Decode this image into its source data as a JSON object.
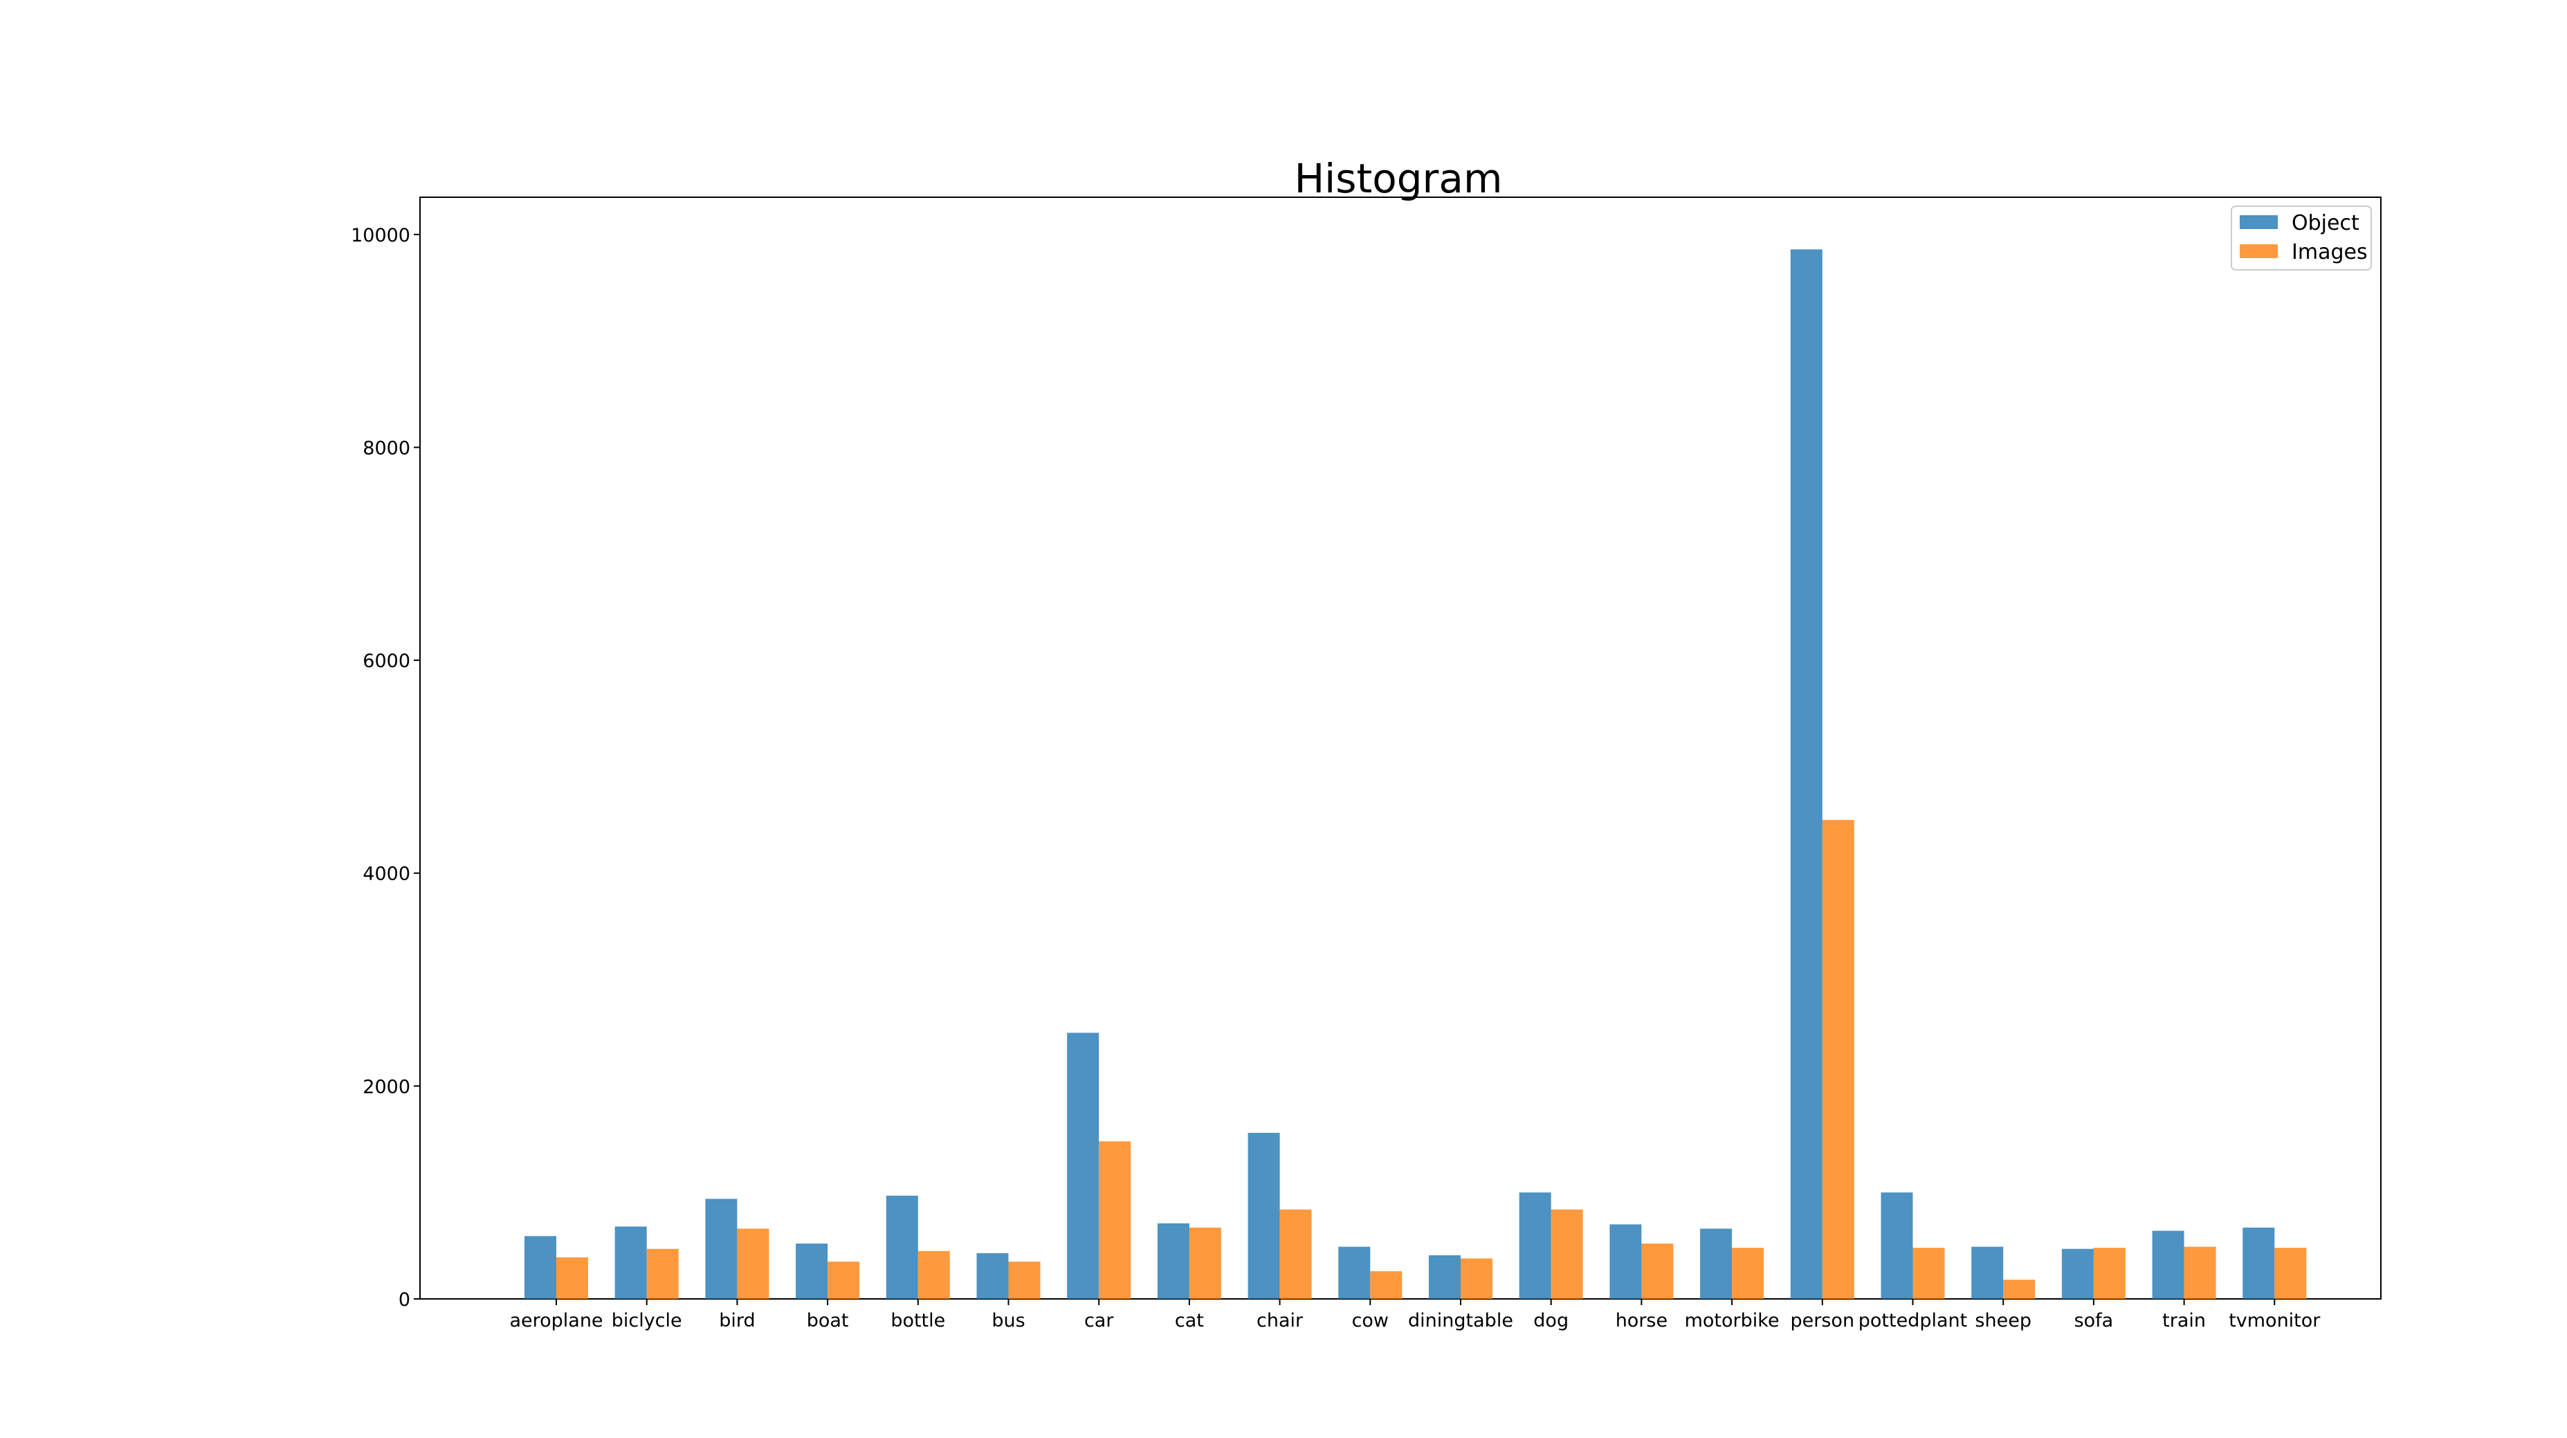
{
  "chart_data": {
    "type": "bar",
    "title": "Histogram",
    "xlabel": "",
    "ylabel": "",
    "categories": [
      "aeroplane",
      "biclycle",
      "bird",
      "boat",
      "bottle",
      "bus",
      "car",
      "cat",
      "chair",
      "cow",
      "diningtable",
      "dog",
      "horse",
      "motorbike",
      "person",
      "pottedplant",
      "sheep",
      "sofa",
      "train",
      "tvmonitor"
    ],
    "series": [
      {
        "name": "Object",
        "color": "#1f77b4",
        "values": [
          590,
          680,
          940,
          520,
          970,
          430,
          2500,
          710,
          1560,
          490,
          410,
          1000,
          700,
          660,
          9860,
          1000,
          490,
          470,
          640,
          670
        ]
      },
      {
        "name": "Images",
        "color": "#ff7f0e",
        "values": [
          390,
          470,
          660,
          350,
          450,
          350,
          1480,
          670,
          840,
          260,
          380,
          840,
          520,
          480,
          4500,
          480,
          180,
          480,
          490,
          480
        ]
      }
    ],
    "ylim": [
      0,
      10350
    ],
    "yticks": [
      0,
      2000,
      4000,
      6000,
      8000,
      10000
    ],
    "legend_position": "top-right",
    "bar_opacity": 0.8
  }
}
